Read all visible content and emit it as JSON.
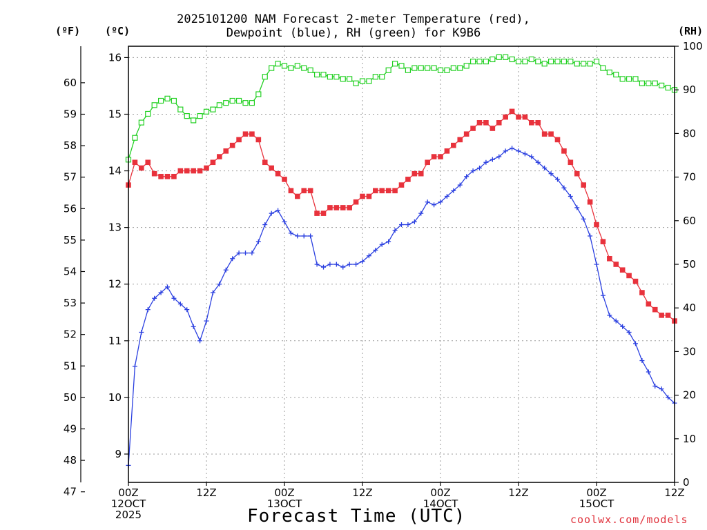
{
  "title_lines": [
    "2025101200 NAM Forecast 2-meter Temperature (red),",
    "Dewpoint (blue), RH (green) for K9B6"
  ],
  "unit_labels": {
    "fahrenheit": "(ºF)",
    "celsius": "(ºC)",
    "rh": "(RH)"
  },
  "xlabel": "Forecast Time (UTC)",
  "credit": "coolwx.com/models",
  "colors": {
    "temperature": "#e8323c",
    "dewpoint": "#2a3fe0",
    "rh": "#22d022",
    "grid": "#9a9a9a"
  },
  "chart_data": {
    "type": "line",
    "x_unit": "forecast hour from 2025-10-12 00Z",
    "xlim": [
      0,
      84
    ],
    "x_ticks": [
      {
        "hour": 0,
        "lines": [
          "00Z",
          "12OCT",
          "2025"
        ]
      },
      {
        "hour": 12,
        "lines": [
          "12Z"
        ]
      },
      {
        "hour": 24,
        "lines": [
          "00Z",
          "13OCT"
        ]
      },
      {
        "hour": 36,
        "lines": [
          "12Z"
        ]
      },
      {
        "hour": 48,
        "lines": [
          "00Z",
          "14OCT"
        ]
      },
      {
        "hour": 60,
        "lines": [
          "12Z"
        ]
      },
      {
        "hour": 72,
        "lines": [
          "00Z",
          "15OCT"
        ]
      },
      {
        "hour": 84,
        "lines": [
          "12Z"
        ]
      }
    ],
    "y_celsius": {
      "lim": [
        8.5,
        16.2
      ],
      "ticks": [
        9,
        10,
        11,
        12,
        13,
        14,
        15,
        16
      ]
    },
    "y_fahrenheit": {
      "lim": [
        47.3,
        61.16
      ],
      "ticks": [
        47,
        48,
        49,
        50,
        51,
        52,
        53,
        54,
        55,
        56,
        57,
        58,
        59,
        60
      ]
    },
    "y_rh": {
      "lim": [
        0,
        100
      ],
      "ticks": [
        0,
        10,
        20,
        30,
        40,
        50,
        60,
        70,
        80,
        90,
        100
      ]
    },
    "series": [
      {
        "name": "Temperature",
        "axis": "celsius",
        "marker": "filled-square",
        "x": [
          0,
          1,
          2,
          3,
          4,
          5,
          6,
          7,
          8,
          9,
          10,
          11,
          12,
          13,
          14,
          15,
          16,
          17,
          18,
          19,
          20,
          21,
          22,
          23,
          24,
          25,
          26,
          27,
          28,
          29,
          30,
          31,
          32,
          33,
          34,
          35,
          36,
          37,
          38,
          39,
          40,
          41,
          42,
          43,
          44,
          45,
          46,
          47,
          48,
          49,
          50,
          51,
          52,
          53,
          54,
          55,
          56,
          57,
          58,
          59,
          60,
          61,
          62,
          63,
          64,
          65,
          66,
          67,
          68,
          69,
          70,
          71,
          72,
          73,
          74,
          75,
          76,
          77,
          78,
          79,
          80,
          81,
          82,
          83,
          84
        ],
        "values": [
          13.75,
          14.15,
          14.05,
          14.15,
          13.95,
          13.9,
          13.9,
          13.9,
          14.0,
          14.0,
          14.0,
          14.0,
          14.05,
          14.15,
          14.25,
          14.35,
          14.45,
          14.55,
          14.65,
          14.65,
          14.55,
          14.15,
          14.05,
          13.95,
          13.85,
          13.65,
          13.55,
          13.65,
          13.65,
          13.25,
          13.25,
          13.35,
          13.35,
          13.35,
          13.35,
          13.45,
          13.55,
          13.55,
          13.65,
          13.65,
          13.65,
          13.65,
          13.75,
          13.85,
          13.95,
          13.95,
          14.15,
          14.25,
          14.25,
          14.35,
          14.45,
          14.55,
          14.65,
          14.75,
          14.85,
          14.85,
          14.75,
          14.85,
          14.95,
          15.05,
          14.95,
          14.95,
          14.85,
          14.85,
          14.65,
          14.65,
          14.55,
          14.35,
          14.15,
          13.95,
          13.75,
          13.45,
          13.05,
          12.75,
          12.45,
          12.35,
          12.25,
          12.15,
          12.05,
          11.85,
          11.65,
          11.55,
          11.45,
          11.45,
          11.35
        ]
      },
      {
        "name": "Dewpoint",
        "axis": "celsius",
        "marker": "plus",
        "x": [
          0,
          1,
          2,
          3,
          4,
          5,
          6,
          7,
          8,
          9,
          10,
          11,
          12,
          13,
          14,
          15,
          16,
          17,
          18,
          19,
          20,
          21,
          22,
          23,
          24,
          25,
          26,
          27,
          28,
          29,
          30,
          31,
          32,
          33,
          34,
          35,
          36,
          37,
          38,
          39,
          40,
          41,
          42,
          43,
          44,
          45,
          46,
          47,
          48,
          49,
          50,
          51,
          52,
          53,
          54,
          55,
          56,
          57,
          58,
          59,
          60,
          61,
          62,
          63,
          64,
          65,
          66,
          67,
          68,
          69,
          70,
          71,
          72,
          73,
          74,
          75,
          76,
          77,
          78,
          79,
          80,
          81,
          82,
          83,
          84
        ],
        "values": [
          8.8,
          10.55,
          11.15,
          11.55,
          11.75,
          11.85,
          11.95,
          11.75,
          11.65,
          11.55,
          11.25,
          11.0,
          11.35,
          11.85,
          12.0,
          12.25,
          12.45,
          12.55,
          12.55,
          12.55,
          12.75,
          13.05,
          13.25,
          13.3,
          13.1,
          12.9,
          12.85,
          12.85,
          12.85,
          12.35,
          12.3,
          12.35,
          12.35,
          12.3,
          12.35,
          12.35,
          12.4,
          12.5,
          12.6,
          12.7,
          12.75,
          12.95,
          13.05,
          13.05,
          13.1,
          13.25,
          13.45,
          13.4,
          13.45,
          13.55,
          13.65,
          13.75,
          13.9,
          14.0,
          14.05,
          14.15,
          14.2,
          14.25,
          14.35,
          14.4,
          14.35,
          14.3,
          14.25,
          14.15,
          14.05,
          13.95,
          13.85,
          13.7,
          13.55,
          13.35,
          13.15,
          12.85,
          12.35,
          11.8,
          11.45,
          11.35,
          11.25,
          11.15,
          10.95,
          10.65,
          10.45,
          10.2,
          10.15,
          10.0,
          9.9
        ]
      },
      {
        "name": "RH",
        "axis": "rh",
        "marker": "open-square",
        "x": [
          0,
          1,
          2,
          3,
          4,
          5,
          6,
          7,
          8,
          9,
          10,
          11,
          12,
          13,
          14,
          15,
          16,
          17,
          18,
          19,
          20,
          21,
          22,
          23,
          24,
          25,
          26,
          27,
          28,
          29,
          30,
          31,
          32,
          33,
          34,
          35,
          36,
          37,
          38,
          39,
          40,
          41,
          42,
          43,
          44,
          45,
          46,
          47,
          48,
          49,
          50,
          51,
          52,
          53,
          54,
          55,
          56,
          57,
          58,
          59,
          60,
          61,
          62,
          63,
          64,
          65,
          66,
          67,
          68,
          69,
          70,
          71,
          72,
          73,
          74,
          75,
          76,
          77,
          78,
          79,
          80,
          81,
          82,
          83,
          84
        ],
        "values": [
          74,
          79,
          82.5,
          84.5,
          86.5,
          87.5,
          88,
          87.5,
          85.5,
          84,
          83,
          84,
          85,
          85.5,
          86.5,
          87,
          87.5,
          87.5,
          87,
          87,
          89,
          93,
          95,
          96,
          95.5,
          95,
          95.5,
          95,
          94.5,
          93.5,
          93.5,
          93,
          93,
          92.5,
          92.5,
          91.5,
          92,
          92,
          93,
          93,
          94.5,
          96,
          95.5,
          94.5,
          95,
          95,
          95,
          95,
          94.5,
          94.5,
          95,
          95,
          95.5,
          96.5,
          96.5,
          96.5,
          97,
          97.5,
          97.5,
          97,
          96.5,
          96.5,
          97,
          96.5,
          96,
          96.5,
          96.5,
          96.5,
          96.5,
          96,
          96,
          96,
          96.5,
          95,
          94,
          93.5,
          92.5,
          92.5,
          92.5,
          91.5,
          91.5,
          91.5,
          91,
          90.5,
          90
        ]
      }
    ]
  }
}
